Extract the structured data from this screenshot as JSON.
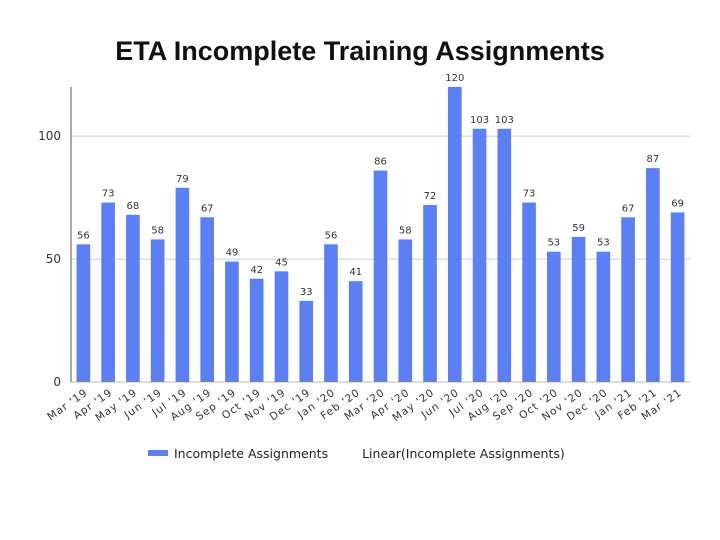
{
  "title": "ETA Incomplete Training Assignments",
  "chart_data": {
    "type": "bar",
    "title": "ETA Incomplete Training Assignments",
    "categories": [
      "Mar '19",
      "Apr '19",
      "May '19",
      "Jun '19",
      "Jul '19",
      "Aug '19",
      "Sep '19",
      "Oct '19",
      "Nov '19",
      "Dec '19",
      "Jan '20",
      "Feb '20",
      "Mar '20",
      "Apr '20",
      "May '20",
      "Jun '20",
      "Jul '20",
      "Aug '20",
      "Sep '20",
      "Oct '20",
      "Nov '20",
      "Dec '20",
      "Jan '21",
      "Feb '21",
      "Mar '21"
    ],
    "tick_labels": [
      "Mar '19",
      "Apr '19",
      "May '19",
      "Jun '19",
      "Jul '19",
      "Aug '19",
      "Sep '19",
      "Oct '19",
      "Nov '19",
      "Dec '19",
      "Jan '20",
      "Feb '20",
      "Mar '20",
      "Apr '20",
      "May '20",
      "Jun '20",
      "Jul '20",
      "Aug '20",
      "Sep '20",
      "Oct '20",
      "Nov '20",
      "Dec '20",
      "Jan '21",
      "Feb '21",
      "Mar '21"
    ],
    "series": [
      {
        "name": "Incomplete Assignments",
        "values": [
          56,
          73,
          68,
          58,
          79,
          67,
          49,
          42,
          45,
          33,
          56,
          41,
          86,
          58,
          72,
          120,
          103,
          103,
          73,
          53,
          59,
          53,
          67,
          87,
          69
        ]
      }
    ],
    "yticks": [
      0,
      50,
      100
    ],
    "ylim": [
      0,
      120
    ],
    "grid": true,
    "legend": {
      "placement": "bottom",
      "entries": [
        "Incomplete Assignments",
        "Linear(Incomplete Assignments)"
      ]
    },
    "colors": {
      "bar": "#5b7ff5",
      "grid": "#cfcfcf"
    }
  }
}
